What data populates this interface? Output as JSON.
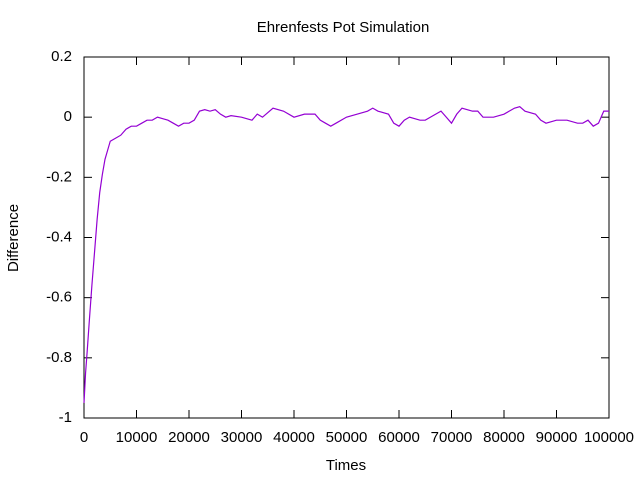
{
  "chart_data": {
    "type": "line",
    "title": "Ehrenfests Pot Simulation",
    "x_label": "Times",
    "y_label": "Difference",
    "x": [
      0,
      300,
      600,
      1000,
      1500,
      2000,
      2500,
      3000,
      3500,
      4000,
      4500,
      5000,
      6000,
      7000,
      8000,
      9000,
      10000,
      11000,
      12000,
      13000,
      14000,
      15000,
      16000,
      17000,
      18000,
      19000,
      20000,
      21000,
      22000,
      23000,
      24000,
      25000,
      26000,
      27000,
      28000,
      30000,
      32000,
      33000,
      34000,
      36000,
      38000,
      40000,
      42000,
      44000,
      45000,
      46000,
      47000,
      48000,
      50000,
      52000,
      54000,
      55000,
      56000,
      58000,
      59000,
      60000,
      61000,
      62000,
      64000,
      65000,
      66000,
      68000,
      69000,
      70000,
      71000,
      72000,
      74000,
      75000,
      76000,
      78000,
      80000,
      81000,
      82000,
      83000,
      84000,
      86000,
      87000,
      88000,
      90000,
      92000,
      94000,
      95000,
      96000,
      97000,
      98000,
      99000,
      100000
    ],
    "series": [
      {
        "name": "Difference",
        "color": "#9400d3",
        "values": [
          -0.95,
          -0.85,
          -0.78,
          -0.68,
          -0.56,
          -0.45,
          -0.34,
          -0.25,
          -0.19,
          -0.14,
          -0.11,
          -0.08,
          -0.07,
          -0.06,
          -0.04,
          -0.03,
          -0.03,
          -0.02,
          -0.01,
          -0.01,
          0.0,
          -0.005,
          -0.01,
          -0.02,
          -0.03,
          -0.02,
          -0.02,
          -0.01,
          0.02,
          0.025,
          0.02,
          0.025,
          0.01,
          0.0,
          0.005,
          0.0,
          -0.01,
          0.01,
          0.0,
          0.03,
          0.02,
          0.0,
          0.01,
          0.01,
          -0.01,
          -0.02,
          -0.03,
          -0.02,
          0.0,
          0.01,
          0.02,
          0.03,
          0.02,
          0.01,
          -0.02,
          -0.03,
          -0.01,
          0.0,
          -0.01,
          -0.01,
          0.0,
          0.02,
          0.0,
          -0.02,
          0.01,
          0.03,
          0.02,
          0.02,
          0.0,
          0.0,
          0.01,
          0.02,
          0.03,
          0.035,
          0.02,
          0.01,
          -0.01,
          -0.02,
          -0.01,
          -0.01,
          -0.02,
          -0.02,
          -0.01,
          -0.03,
          -0.02,
          0.02,
          0.02
        ]
      }
    ],
    "xlim": [
      0,
      100000
    ],
    "ylim": [
      -1,
      0.2
    ],
    "xticks": [
      0,
      10000,
      20000,
      30000,
      40000,
      50000,
      60000,
      70000,
      80000,
      90000,
      100000
    ],
    "yticks": [
      -1,
      -0.8,
      -0.6,
      -0.4,
      -0.2,
      0,
      0.2
    ]
  }
}
